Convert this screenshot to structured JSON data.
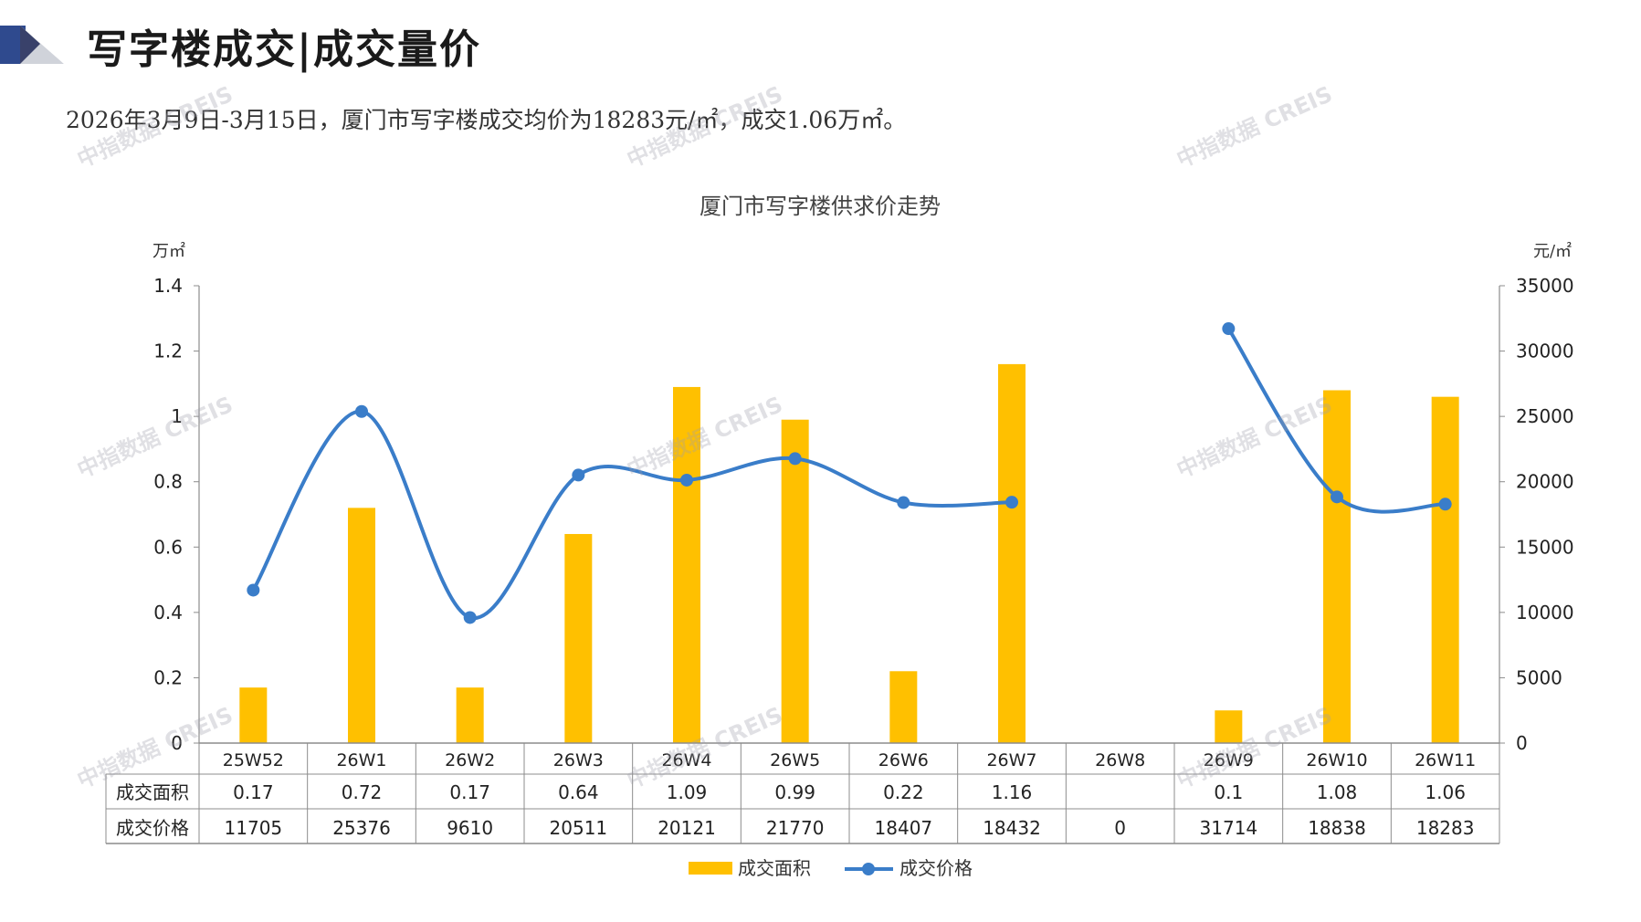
{
  "header": {
    "title": "写字楼成交|成交量价",
    "subtitle": "2026年3月9日-3月15日，厦门市写字楼成交均价为18283元/㎡，成交1.06万㎡。"
  },
  "watermark_text": "中指数据 CREIS",
  "colors": {
    "bar": "#FFC000",
    "line": "#3A7DC9",
    "axis": "#8c8c8c",
    "logo_dark": "#2F4A8E",
    "logo_light": "#D0D3DA"
  },
  "chart_data": {
    "type": "bar",
    "title": "厦门市写字楼供求价走势",
    "categories": [
      "25W52",
      "26W1",
      "26W2",
      "26W3",
      "26W4",
      "26W5",
      "26W6",
      "26W7",
      "26W8",
      "26W9",
      "26W10",
      "26W11"
    ],
    "y_left_unit": "万㎡",
    "y_right_unit": "元/㎡",
    "y_left_ticks": [
      "1.4",
      "1.2",
      "1",
      "0.8",
      "0.6",
      "0.4",
      "0.2",
      "0"
    ],
    "y_right_ticks": [
      "35000",
      "30000",
      "25000",
      "20000",
      "15000",
      "10000",
      "5000",
      "0"
    ],
    "ylim_left": [
      0,
      1.4
    ],
    "ylim_right": [
      0,
      35000
    ],
    "series": [
      {
        "name": "成交面积",
        "type": "bar",
        "axis": "left",
        "values": [
          0.17,
          0.72,
          0.17,
          0.64,
          1.09,
          0.99,
          0.22,
          1.16,
          null,
          0.1,
          1.08,
          1.06
        ],
        "labels": [
          "0.17",
          "0.72",
          "0.17",
          "0.64",
          "1.09",
          "0.99",
          "0.22",
          "1.16",
          "",
          "0.1",
          "1.08",
          "1.06"
        ]
      },
      {
        "name": "成交价格",
        "type": "line",
        "axis": "right",
        "values": [
          11705,
          25376,
          9610,
          20511,
          20121,
          21770,
          18407,
          18432,
          0,
          31714,
          18838,
          18283
        ],
        "labels": [
          "11705",
          "25376",
          "9610",
          "20511",
          "20121",
          "21770",
          "18407",
          "18432",
          "0",
          "31714",
          "18838",
          "18283"
        ]
      }
    ],
    "legend": {
      "position": "bottom",
      "entries": [
        "成交面积",
        "成交价格"
      ]
    }
  }
}
